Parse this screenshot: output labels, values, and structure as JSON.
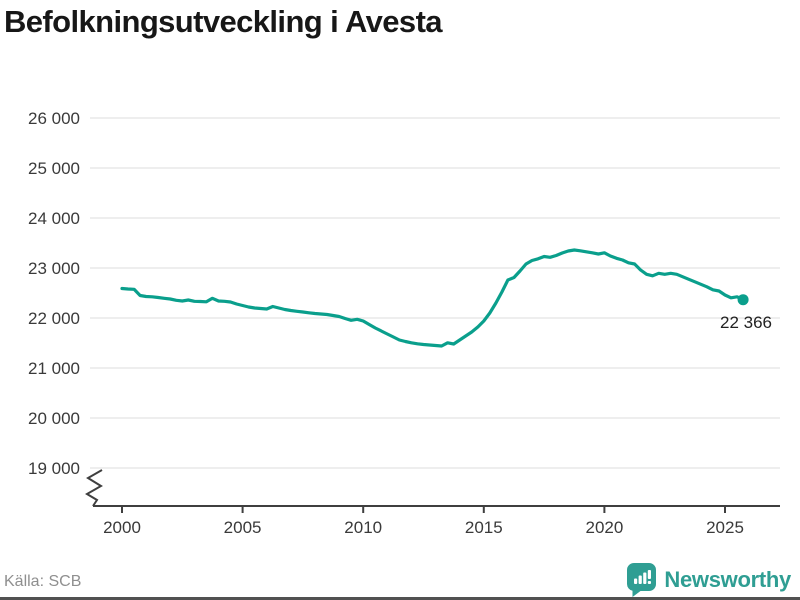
{
  "chart_data": {
    "type": "line",
    "title": "Befolkningsutveckling i Avesta",
    "xlabel": "",
    "ylabel": "",
    "grid": "horizontal",
    "axis_break": true,
    "xlim": [
      1998.7,
      2027.3
    ],
    "ylim": [
      19000,
      26000
    ],
    "x_ticks": {
      "values": [
        2000,
        2005,
        2010,
        2015,
        2020,
        2025
      ],
      "labels": [
        "2000",
        "2005",
        "2010",
        "2015",
        "2020",
        "2025"
      ]
    },
    "y_ticks": {
      "values": [
        26000,
        25000,
        24000,
        23000,
        22000,
        21000,
        20000,
        19000
      ],
      "labels": [
        "26 000",
        "25 000",
        "24 000",
        "23 000",
        "22 000",
        "21 000",
        "20 000",
        "19 000"
      ]
    },
    "x_start": 2000,
    "x_step": 0.25,
    "series": [
      {
        "name": "Befolkning i Avesta",
        "color": "#0a9f8c",
        "values": [
          22590,
          22580,
          22575,
          22450,
          22430,
          22425,
          22410,
          22395,
          22380,
          22355,
          22340,
          22360,
          22335,
          22330,
          22325,
          22395,
          22340,
          22335,
          22320,
          22280,
          22250,
          22220,
          22200,
          22190,
          22180,
          22230,
          22200,
          22170,
          22150,
          22135,
          22120,
          22105,
          22090,
          22080,
          22070,
          22050,
          22030,
          21990,
          21955,
          21975,
          21940,
          21870,
          21800,
          21740,
          21680,
          21620,
          21560,
          21530,
          21505,
          21485,
          21470,
          21460,
          21450,
          21440,
          21505,
          21480,
          21560,
          21640,
          21720,
          21820,
          21940,
          22100,
          22300,
          22520,
          22760,
          22810,
          22940,
          23080,
          23150,
          23185,
          23230,
          23215,
          23250,
          23300,
          23340,
          23360,
          23345,
          23325,
          23305,
          23280,
          23305,
          23240,
          23195,
          23160,
          23105,
          23080,
          22960,
          22875,
          22845,
          22895,
          22875,
          22895,
          22875,
          22825,
          22775,
          22725,
          22675,
          22625,
          22565,
          22540,
          22460,
          22405,
          22425,
          22366
        ]
      }
    ],
    "last_point": {
      "x": 2025.75,
      "value": 22366,
      "label": "22 366"
    }
  },
  "footer": {
    "source": "Källa: SCB",
    "brand": "Newsworthy",
    "brand_color": "#2f9e93"
  }
}
